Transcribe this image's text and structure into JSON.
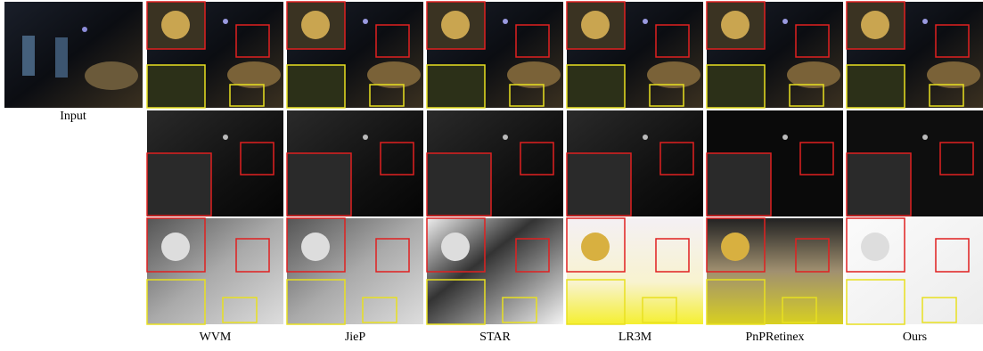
{
  "figure": {
    "input_label": "Input",
    "methods": [
      "WVM",
      "JieP",
      "STAR",
      "LR3M",
      "PnPRetinex",
      "Ours"
    ]
  }
}
